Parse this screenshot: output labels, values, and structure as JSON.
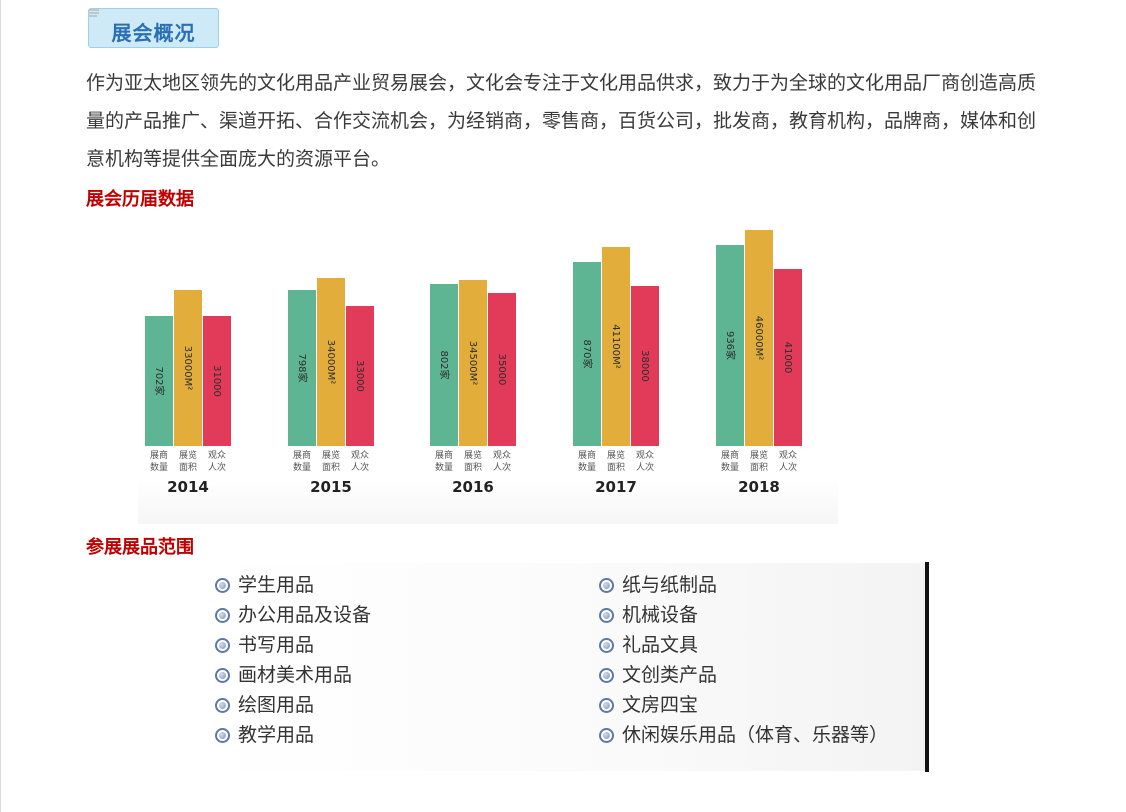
{
  "section": {
    "title": "展会概况"
  },
  "intro": {
    "text": "作为亚太地区领先的文化用品产业贸易展会，文化会专注于文化用品供求，致力于为全球的文化用品厂商创造高质量的产品推广、渠道开拓、合作交流机会，为经销商，零售商，百货公司，批发商，教育机构，品牌商，媒体和创意机构等提供全面庞大的资源平台。"
  },
  "history": {
    "heading": "展会历届数据"
  },
  "scope": {
    "heading": "参展展品范围",
    "left": [
      "学生用品",
      "办公用品及设备",
      "书写用品",
      "画材美术用品",
      "绘图用品",
      "教学用品"
    ],
    "right": [
      "纸与纸制品",
      "机械设备",
      "礼品文具",
      "文创类产品",
      "文房四宝",
      "休闲娱乐用品（体育、乐器等）"
    ]
  },
  "colors": {
    "green": "#5db594",
    "gold": "#e3ad3c",
    "red": "#e23b59",
    "title_blue": "#2b6fb6",
    "heading_red": "#c00000"
  },
  "chart_data": {
    "type": "bar",
    "categories": [
      "2014",
      "2015",
      "2016",
      "2017",
      "2018"
    ],
    "series": [
      {
        "name": "展商数量",
        "values": [
          702,
          798,
          802,
          870,
          936
        ],
        "labels": [
          "702家",
          "798家",
          "802家",
          "870家",
          "936家"
        ]
      },
      {
        "name": "展览面积",
        "values": [
          33000,
          34000,
          34500,
          41100,
          46000
        ],
        "labels": [
          "33000M²",
          "34000M²",
          "34500M²",
          "41100M²",
          "46000M²"
        ]
      },
      {
        "name": "观众人次",
        "values": [
          31000,
          33000,
          35000,
          38000,
          41000
        ],
        "labels": [
          "31000",
          "33000",
          "35000",
          "38000",
          "41000"
        ]
      }
    ],
    "series_label_lines": [
      [
        "展商",
        "数量"
      ],
      [
        "展览",
        "面积"
      ],
      [
        "观众",
        "人次"
      ]
    ],
    "bar_heights_relative": {
      "展商数量": [
        0.6,
        0.72,
        0.75,
        0.85,
        0.93
      ],
      "展览面积": [
        0.72,
        0.78,
        0.77,
        0.92,
        1.0
      ],
      "观众人次": [
        0.6,
        0.65,
        0.71,
        0.74,
        0.82
      ]
    }
  }
}
